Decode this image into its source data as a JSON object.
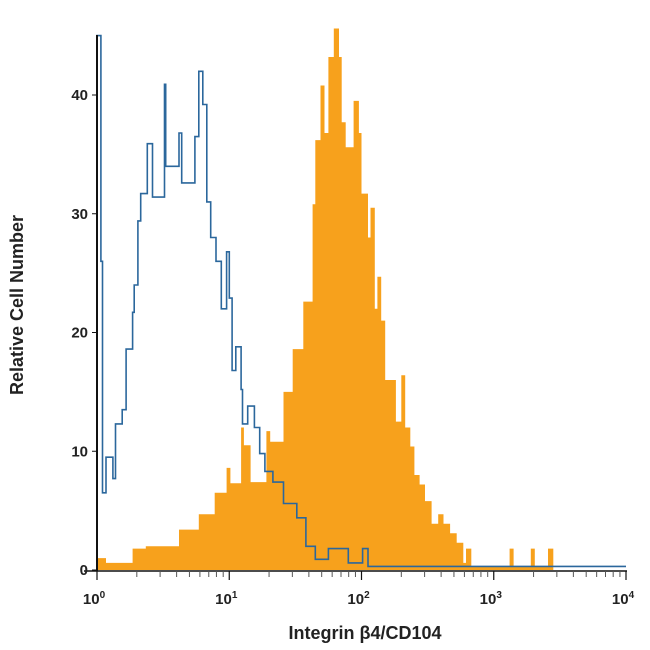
{
  "chart_data": {
    "type": "histogram",
    "xlabel": "Integrin β4/CD104",
    "ylabel": "Relative Cell Number",
    "x_scale": "log",
    "xlim": [
      1,
      10000
    ],
    "ylim": [
      0,
      45
    ],
    "x_ticks": [
      {
        "value": 1,
        "base": "10",
        "exp": "0"
      },
      {
        "value": 10,
        "base": "10",
        "exp": "1"
      },
      {
        "value": 100,
        "base": "10",
        "exp": "2"
      },
      {
        "value": 1000,
        "base": "10",
        "exp": "3"
      },
      {
        "value": 10000,
        "base": "10",
        "exp": "4"
      }
    ],
    "y_ticks": [
      {
        "value": 0,
        "label": "0"
      },
      {
        "value": 10,
        "label": "10"
      },
      {
        "value": 20,
        "label": "20"
      },
      {
        "value": 30,
        "label": "30"
      },
      {
        "value": 40,
        "label": "40"
      }
    ],
    "grid": false,
    "series": [
      {
        "style": "filled",
        "color": "#F7A11C",
        "points": [
          [
            1.0,
            1
          ],
          [
            1.17,
            0.6
          ],
          [
            1.86,
            1.8
          ],
          [
            2.34,
            2
          ],
          [
            4.17,
            3.4
          ],
          [
            5.89,
            4.7
          ],
          [
            7.76,
            6.5
          ],
          [
            9.55,
            8.6
          ],
          [
            10.2,
            7.3
          ],
          [
            12.3,
            12
          ],
          [
            12.9,
            10.5
          ],
          [
            14.5,
            7.4
          ],
          [
            19.1,
            11.7
          ],
          [
            20.4,
            10.8
          ],
          [
            25.7,
            15
          ],
          [
            30.2,
            18.6
          ],
          [
            36.3,
            22.6
          ],
          [
            42.7,
            30.8
          ],
          [
            44.7,
            36.2
          ],
          [
            49.0,
            40.8
          ],
          [
            52.5,
            36.8
          ],
          [
            56.2,
            43.2
          ],
          [
            61.7,
            45.6
          ],
          [
            67.6,
            43.2
          ],
          [
            70.8,
            37.7
          ],
          [
            75.9,
            35.6
          ],
          [
            87.1,
            39.5
          ],
          [
            95.5,
            36.8
          ],
          [
            100,
            31.7
          ],
          [
            112,
            28
          ],
          [
            117,
            30.5
          ],
          [
            126,
            22
          ],
          [
            132,
            24.7
          ],
          [
            141,
            21
          ],
          [
            151,
            16
          ],
          [
            182,
            12.5
          ],
          [
            200,
            16.4
          ],
          [
            214,
            12
          ],
          [
            234,
            10.4
          ],
          [
            251,
            8
          ],
          [
            275,
            7.2
          ],
          [
            302,
            5.8
          ],
          [
            339,
            3.9
          ],
          [
            380,
            4.7
          ],
          [
            417,
            3.9
          ],
          [
            468,
            3.1
          ],
          [
            525,
            2.3
          ],
          [
            589,
            0.6
          ],
          [
            617,
            1.8
          ],
          [
            676,
            0.3
          ],
          [
            1318,
            1.8
          ],
          [
            1413,
            0.3
          ],
          [
            1905,
            1.8
          ],
          [
            2042,
            0.3
          ],
          [
            2570,
            1.8
          ],
          [
            2818,
            0
          ],
          [
            10000,
            0
          ]
        ]
      },
      {
        "style": "outline",
        "color": "#2B679C",
        "points": [
          [
            1,
            45
          ],
          [
            1.07,
            26
          ],
          [
            1.1,
            6.5
          ],
          [
            1.17,
            9.5
          ],
          [
            1.32,
            7.7
          ],
          [
            1.38,
            12.3
          ],
          [
            1.55,
            13.5
          ],
          [
            1.66,
            18.6
          ],
          [
            1.86,
            21.7
          ],
          [
            1.91,
            24
          ],
          [
            2.04,
            29.4
          ],
          [
            2.14,
            31.7
          ],
          [
            2.4,
            35.9
          ],
          [
            2.63,
            31.4
          ],
          [
            3.24,
            40.9
          ],
          [
            3.31,
            34
          ],
          [
            4.17,
            36.8
          ],
          [
            4.37,
            32.6
          ],
          [
            5.5,
            36.5
          ],
          [
            5.89,
            42
          ],
          [
            6.31,
            39.2
          ],
          [
            6.76,
            31
          ],
          [
            7.24,
            28
          ],
          [
            7.94,
            26
          ],
          [
            8.71,
            22
          ],
          [
            9.55,
            26.8
          ],
          [
            10,
            22.9
          ],
          [
            10.5,
            16.8
          ],
          [
            11.2,
            18.8
          ],
          [
            12.3,
            15.2
          ],
          [
            12.6,
            12.3
          ],
          [
            13.8,
            13.8
          ],
          [
            15.5,
            12
          ],
          [
            17.0,
            9.8
          ],
          [
            18.6,
            8.3
          ],
          [
            21.4,
            7.4
          ],
          [
            25.7,
            5.6
          ],
          [
            32.4,
            4.4
          ],
          [
            38.0,
            2
          ],
          [
            44.7,
            0.9
          ],
          [
            56.2,
            1.8
          ],
          [
            79.4,
            0.6
          ],
          [
            102,
            1.8
          ],
          [
            112,
            0.3
          ],
          [
            10000,
            0.3
          ]
        ]
      }
    ]
  }
}
